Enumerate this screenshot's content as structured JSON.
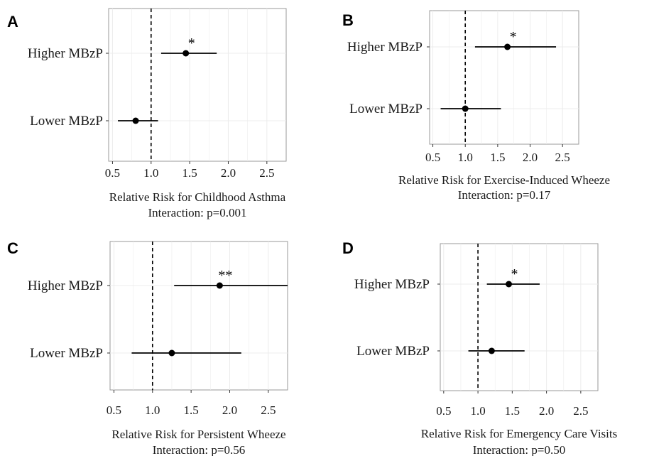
{
  "chart_data": [
    {
      "type": "forest",
      "panel": "A",
      "categories": [
        "Higher MBzP",
        "Lower MBzP"
      ],
      "estimates": [
        1.45,
        0.8
      ],
      "ci_lower": [
        1.13,
        0.57
      ],
      "ci_upper": [
        1.85,
        1.09
      ],
      "significance": [
        "*",
        ""
      ],
      "xlim": [
        0.45,
        2.75
      ],
      "xticks": [
        "0.5",
        "1.0",
        "1.5",
        "2.0",
        "2.5"
      ],
      "reference_line": 1.0,
      "xlabel": "Relative Risk for Childhood Asthma",
      "interaction": "Interaction: p=0.001"
    },
    {
      "type": "forest",
      "panel": "B",
      "categories": [
        "Higher MBzP",
        "Lower MBzP"
      ],
      "estimates": [
        1.65,
        1.0
      ],
      "ci_lower": [
        1.15,
        0.62
      ],
      "ci_upper": [
        2.4,
        1.55
      ],
      "significance": [
        "*",
        ""
      ],
      "xlim": [
        0.45,
        2.75
      ],
      "xticks": [
        "0.5",
        "1.0",
        "1.5",
        "2.0",
        "2.5"
      ],
      "reference_line": 1.0,
      "xlabel": "Relative Risk for Exercise-Induced Wheeze",
      "interaction": "Interaction:  p=0.17"
    },
    {
      "type": "forest",
      "panel": "C",
      "categories": [
        "Higher MBzP",
        "Lower MBzP"
      ],
      "estimates": [
        1.87,
        1.25
      ],
      "ci_lower": [
        1.28,
        0.73
      ],
      "ci_upper": [
        2.75,
        2.15
      ],
      "significance": [
        "**",
        ""
      ],
      "xlim": [
        0.45,
        2.75
      ],
      "xticks": [
        "0.5",
        "1.0",
        "1.5",
        "2.0",
        "2.5"
      ],
      "reference_line": 1.0,
      "xlabel": "Relative Risk for Persistent Wheeze",
      "interaction": "Interaction:  p=0.56"
    },
    {
      "type": "forest",
      "panel": "D",
      "categories": [
        "Higher MBzP",
        "Lower MBzP"
      ],
      "estimates": [
        1.45,
        1.2
      ],
      "ci_lower": [
        1.13,
        0.86
      ],
      "ci_upper": [
        1.9,
        1.68
      ],
      "significance": [
        "*",
        ""
      ],
      "xlim": [
        0.45,
        2.75
      ],
      "xticks": [
        "0.5",
        "1.0",
        "1.5",
        "2.0",
        "2.5"
      ],
      "reference_line": 1.0,
      "xlabel": "Relative Risk for Emergency Care Visits",
      "interaction": "Interaction:  p=0.50"
    }
  ],
  "style": {
    "panel_border": "#999999",
    "grid": "#ececec",
    "mark": "#000000"
  }
}
